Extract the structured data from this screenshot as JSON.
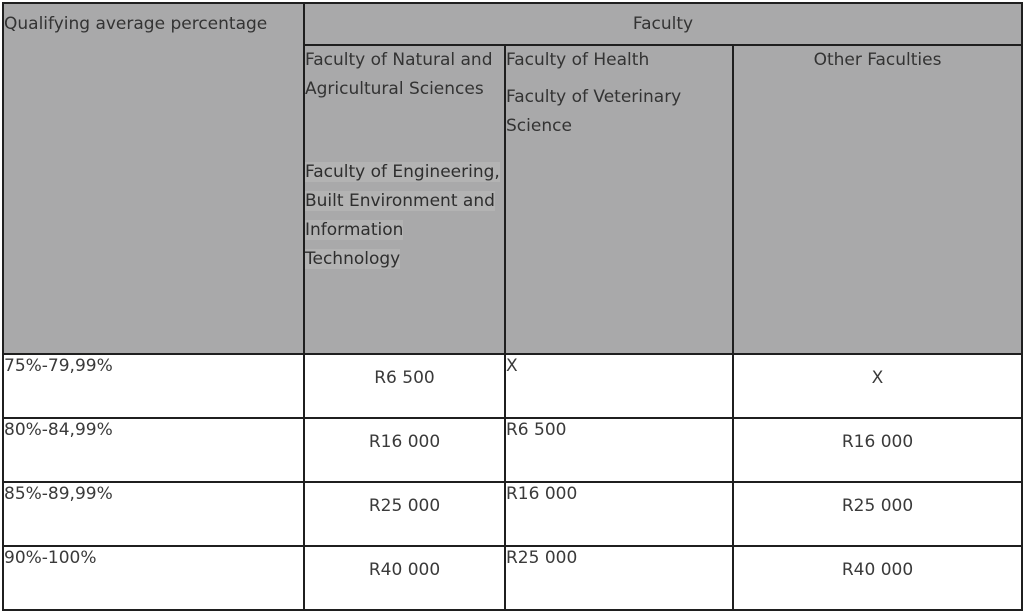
{
  "table": {
    "corner_header": "Qualifying average percentage",
    "group_header": "Faculty",
    "col1": {
      "line1": "Faculty of Natural and Agricultural Sciences",
      "line2": "Faculty of Engineering, Built Environment and Information Technology"
    },
    "col2": {
      "line1": "Faculty of Health",
      "line2": "Faculty of Veterinary Science"
    },
    "col3": {
      "line1": "Other Faculties"
    },
    "rows": [
      {
        "range": "75%-79,99%",
        "c1": "R6 500",
        "c2": "X",
        "c3": "X"
      },
      {
        "range": "80%-84,99%",
        "c1": "R16 000",
        "c2": "R6 500",
        "c3": "R16 000"
      },
      {
        "range": "85%-89,99%",
        "c1": "R25 000",
        "c2": "R16 000",
        "c3": "R25 000"
      },
      {
        "range": "90%-100%",
        "c1": "R40 000",
        "c2": "R25 000",
        "c3": "R40 000"
      }
    ]
  }
}
